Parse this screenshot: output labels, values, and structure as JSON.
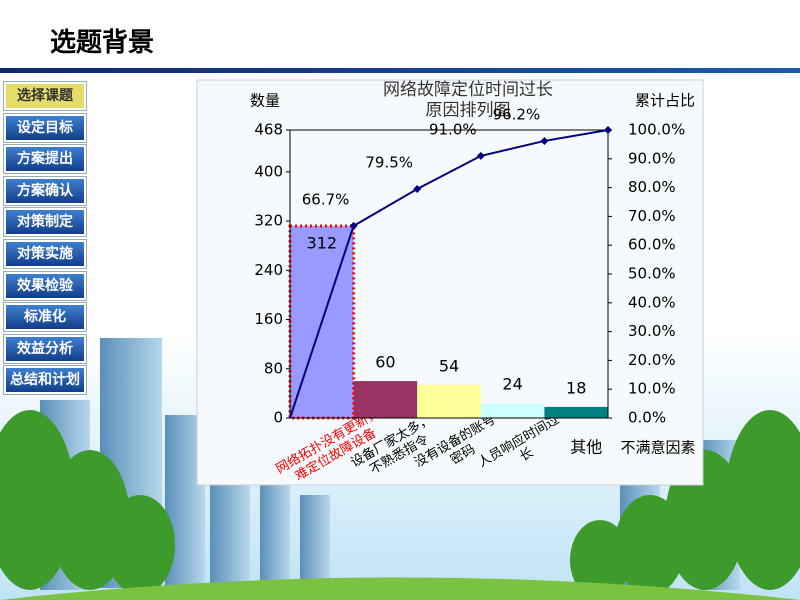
{
  "header": {
    "title": "选题背景"
  },
  "nav": [
    "选择课题",
    "设定目标",
    "方案提出",
    "方案确认",
    "对策制定",
    "对策实施",
    "效果检验",
    "标准化",
    "效益分析",
    "总结和计划"
  ],
  "chart_data": {
    "type": "pareto",
    "title": "网络故障定位时间过长\n原因排列图",
    "y_label": "数量",
    "y2_label": "累计占比",
    "x_label": "不满意因素",
    "categories": [
      "网络拓扑没有更新，\n难定位故障设备",
      "设备厂家太多，\n不熟悉指令",
      "没有设备的账号\n密码",
      "人员响应时间过\n长",
      "其他"
    ],
    "series": [
      {
        "name": "数量",
        "axis": "y",
        "colors": [
          "#9999ff",
          "#993366",
          "#ffff99",
          "#ccffff",
          "#008080"
        ],
        "values": [
          312,
          60,
          54,
          24,
          18
        ]
      },
      {
        "name": "累计占比",
        "axis": "y2",
        "color": "#000080",
        "values": [
          66.7,
          79.5,
          91.0,
          96.2,
          100.0
        ],
        "value_labels": [
          "66.7%",
          "79.5%",
          "91.0%",
          "96.2%",
          null
        ]
      }
    ],
    "ylim": [
      0,
      468
    ],
    "yticks": [
      0,
      80,
      160,
      240,
      320,
      400,
      468
    ],
    "y2lim": [
      0,
      100
    ],
    "y2ticks": [
      {
        "value": 0,
        "label": "0.0%"
      },
      {
        "value": 10,
        "label": "10.0%"
      },
      {
        "value": 20,
        "label": "20.0%"
      },
      {
        "value": 30,
        "label": "30.0%"
      },
      {
        "value": 40,
        "label": "40.0%"
      },
      {
        "value": 50,
        "label": "50.0%"
      },
      {
        "value": 60,
        "label": "60.0%"
      },
      {
        "value": 70,
        "label": "70.0%"
      },
      {
        "value": 80,
        "label": "80.0%"
      },
      {
        "value": 90,
        "label": "90.0%"
      },
      {
        "value": 100,
        "label": "100.0%"
      }
    ],
    "highlight_color": "#ff0000"
  }
}
